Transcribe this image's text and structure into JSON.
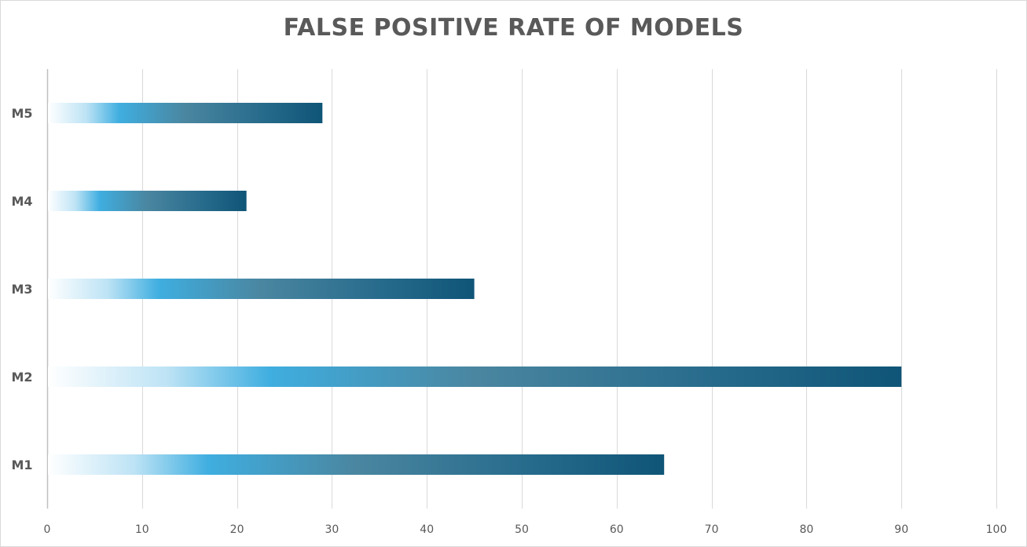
{
  "chart_data": {
    "type": "bar",
    "orientation": "horizontal",
    "title": "FALSE POSITIVE RATE OF MODELS",
    "xlabel": "",
    "ylabel": "",
    "categories": [
      "M1",
      "M2",
      "M3",
      "M4",
      "M5"
    ],
    "values": [
      65,
      90,
      45,
      21,
      29
    ],
    "xlim": [
      0,
      100
    ],
    "xticks": [
      0,
      10,
      20,
      30,
      40,
      50,
      60,
      70,
      80,
      90,
      100
    ],
    "grid": "vertical",
    "legend": "none",
    "colors": {
      "bar_gradient": [
        "#ffffff",
        "#bde3f5",
        "#3faee0",
        "#4a86a0",
        "#276b8c",
        "#0f5577"
      ],
      "grid": "#d9d9d9",
      "text": "#595959"
    }
  }
}
